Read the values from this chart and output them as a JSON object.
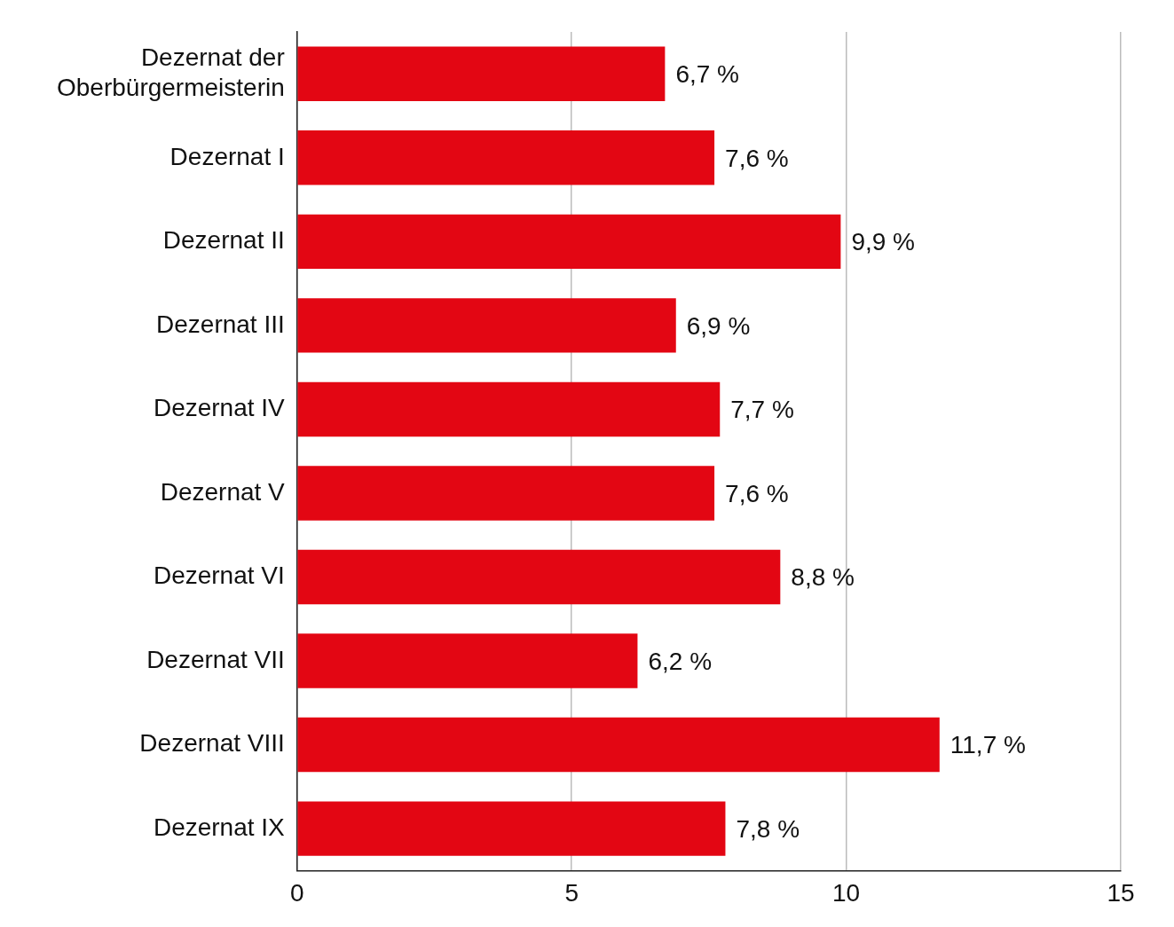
{
  "chart_data": {
    "type": "bar",
    "orientation": "horizontal",
    "categories": [
      "Dezernat der Oberbürgermeisterin",
      "Dezernat I",
      "Dezernat II",
      "Dezernat III",
      "Dezernat IV",
      "Dezernat V",
      "Dezernat VI",
      "Dezernat VII",
      "Dezernat VIII",
      "Dezernat IX"
    ],
    "values": [
      6.7,
      7.6,
      9.9,
      6.9,
      7.7,
      7.6,
      8.8,
      6.2,
      11.7,
      7.8
    ],
    "value_labels": [
      "6,7 %",
      "7,6 %",
      "9,9 %",
      "6,9 %",
      "7,7 %",
      "7,6 %",
      "8,8 %",
      "6,2 %",
      "11,7 %",
      "7,8 %"
    ],
    "color": "#e30613",
    "xlim": [
      0,
      15
    ],
    "xticks": [
      0,
      5,
      10,
      15
    ],
    "grid": "x",
    "legend": false
  }
}
